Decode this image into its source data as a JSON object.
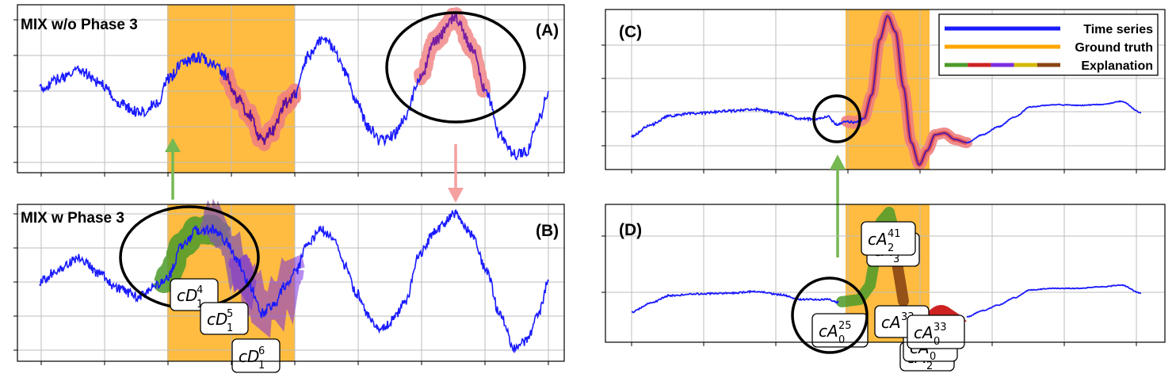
{
  "colors": {
    "series": "#1a1aff",
    "ground_truth": "#ffa500",
    "highlight": "#f08080",
    "expl_green": "#4c9a2a",
    "expl_red": "#cc2222",
    "expl_purple": "#7b2fe0",
    "expl_yellow": "#d4b800",
    "expl_brown": "#8b4513",
    "arrow_green": "#76b852",
    "arrow_pink": "#f4a0a0"
  },
  "chart_data": [
    {
      "id": "A",
      "type": "line",
      "title": "MIX w/o Phase 3",
      "panel_label": "(A)",
      "series": [
        {
          "values": []
        }
      ],
      "ground_truth_region": [
        20,
        40
      ],
      "explanation_segments": [
        {
          "start": 29.5,
          "end": 40,
          "color": "purple"
        },
        {
          "start": 61.5,
          "end": 70.5,
          "color": "pink"
        }
      ],
      "circle": {
        "x": 65,
        "label_target": "peak"
      },
      "grid": true
    },
    {
      "id": "B",
      "type": "line",
      "title": "MIX w Phase 3",
      "panel_label": "(B)",
      "series": [
        {
          "values": []
        }
      ],
      "ground_truth_region": [
        20,
        40
      ],
      "annotations": [
        {
          "main": "cD",
          "sup": "4",
          "sub": "1"
        },
        {
          "main": "cD",
          "sup": "5",
          "sub": "1"
        },
        {
          "main": "cD",
          "sup": "6",
          "sub": "1"
        }
      ],
      "grid": true
    },
    {
      "id": "C",
      "type": "line",
      "title": "",
      "panel_label": "(C)",
      "legend": [
        {
          "label": "Time series",
          "color": "#1a1aff"
        },
        {
          "label": "Ground truth",
          "color": "#ffa500"
        },
        {
          "label": "Explanation",
          "color": "multi"
        }
      ],
      "legend_position": "top-right",
      "ground_truth_region": [
        42,
        53
      ],
      "grid": true
    },
    {
      "id": "D",
      "type": "line",
      "title": "",
      "panel_label": "(D)",
      "ground_truth_region": [
        42,
        53
      ],
      "annotations": [
        {
          "main": "cA",
          "sup": "41",
          "sub": "2"
        },
        {
          "main": "cA",
          "sup": "",
          "sub": "3"
        },
        {
          "main": "cA",
          "sup": "25",
          "sub": "0"
        },
        {
          "main": "cA",
          "sup": "33",
          "sub": "0"
        },
        {
          "main": "cA",
          "sup": "",
          "sub": "0"
        },
        {
          "main": "cA",
          "sup": "",
          "sub": "2"
        }
      ],
      "grid": true
    }
  ]
}
